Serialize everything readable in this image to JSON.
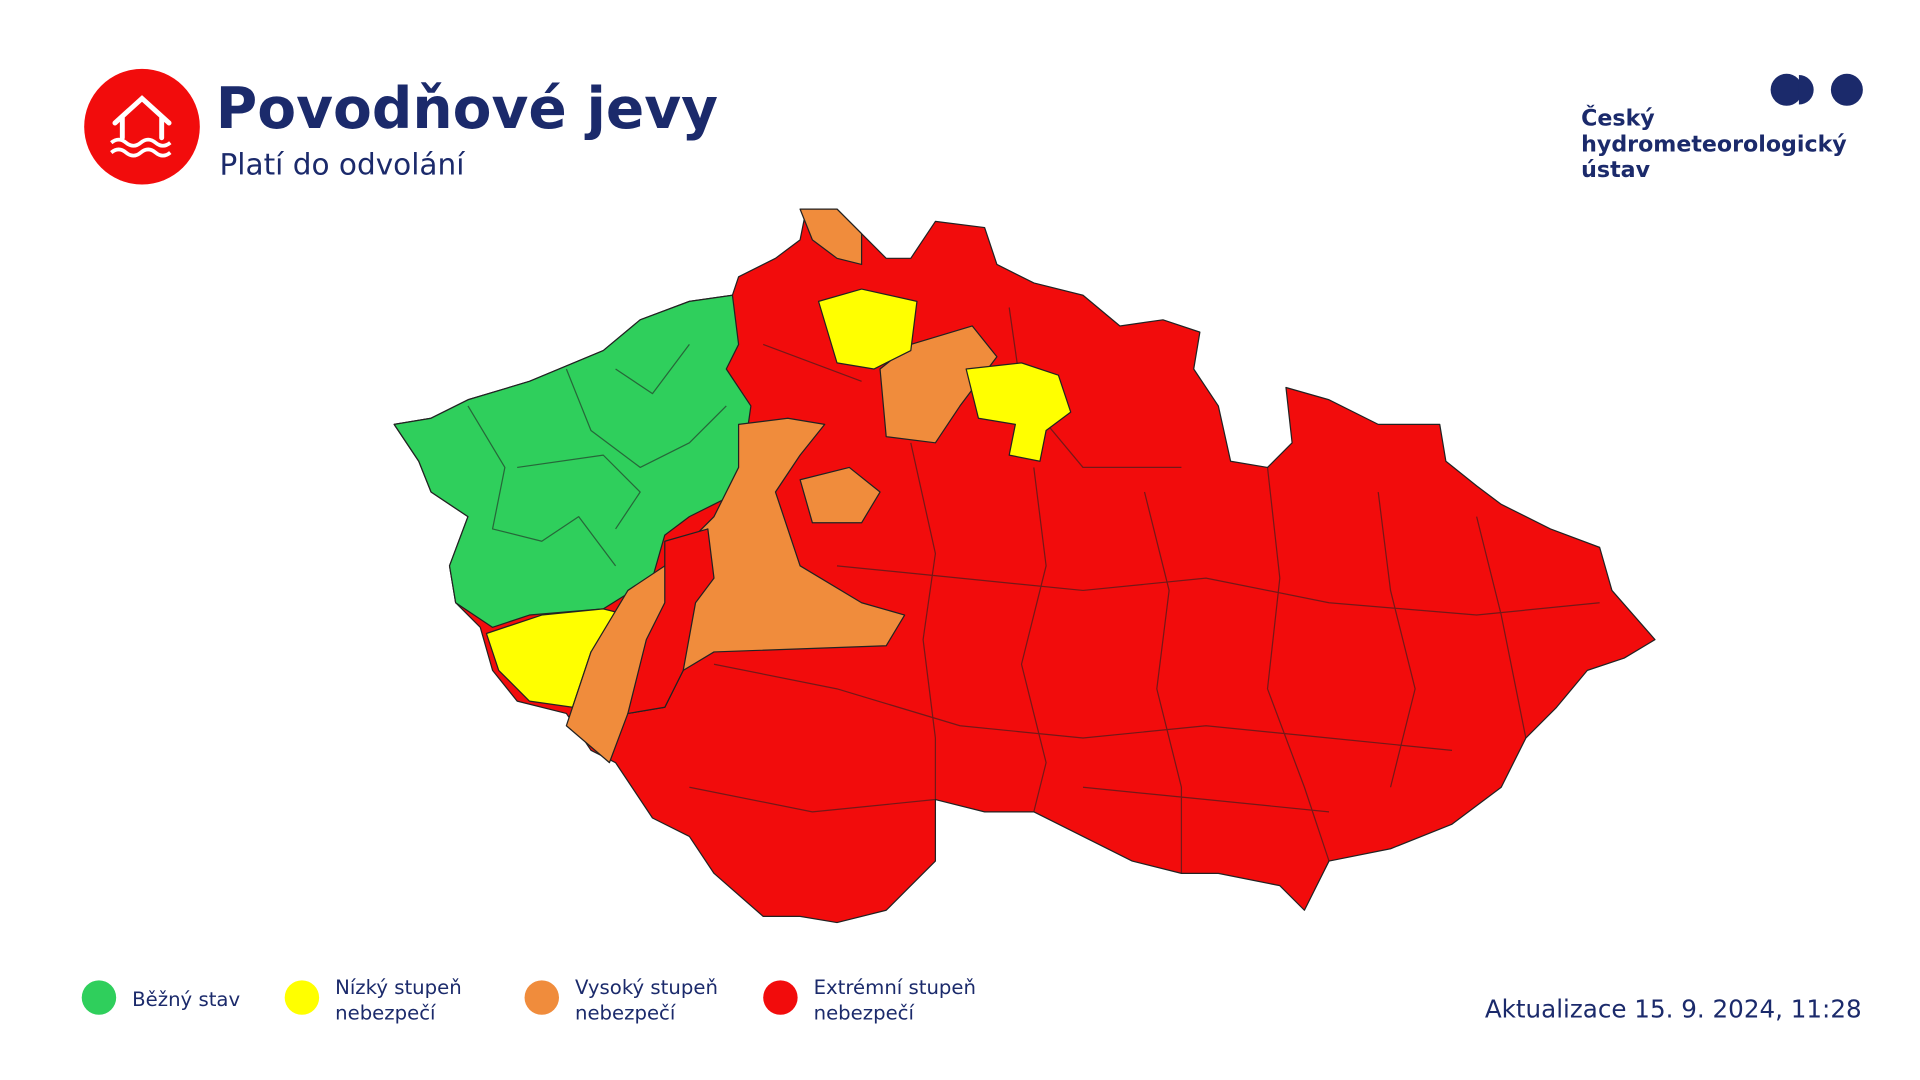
{
  "header": {
    "title": "Povodňové jevy",
    "subtitle": "Platí do odvolání"
  },
  "logo": {
    "lines": [
      "Český",
      "hydrometeorologický",
      "ústav"
    ]
  },
  "legend": [
    {
      "lines": [
        "Běžný stav"
      ],
      "color": "#2fcf5c"
    },
    {
      "lines": [
        "Nízký stupeň",
        "nebezpečí"
      ],
      "color": "#ffff00"
    },
    {
      "lines": [
        "Vysoký stupeň",
        "nebezpečí"
      ],
      "color": "#f08c3c"
    },
    {
      "lines": [
        "Extrémní stupeň",
        "nebezpečí"
      ],
      "color": "#f20c0c"
    }
  ],
  "updated": "Aktualizace 15. 9. 2024, 11:28"
}
